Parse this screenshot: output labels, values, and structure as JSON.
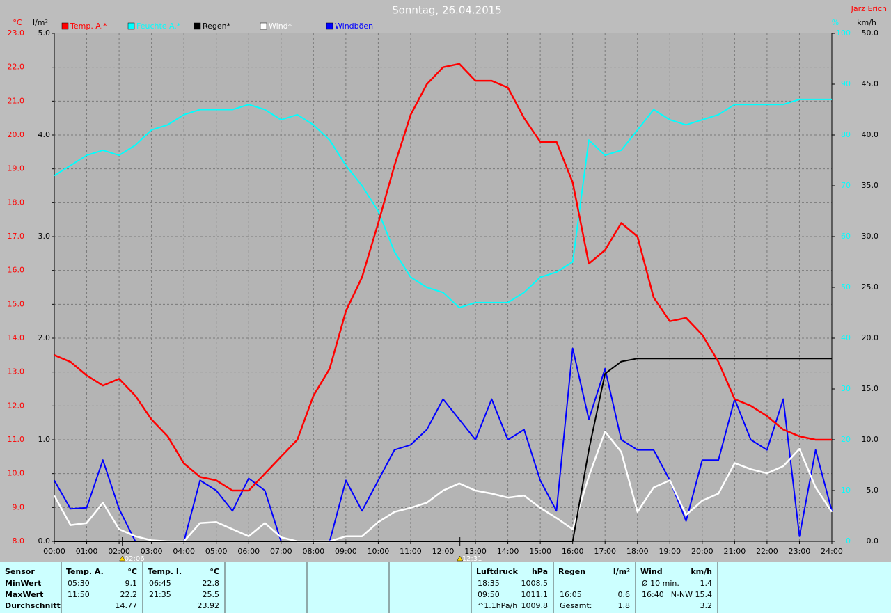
{
  "chart_data": {
    "type": "line",
    "title": "Sonntag, 26.04.2015",
    "author": "Jarz Erich",
    "grid": true,
    "x": [
      0,
      0.5,
      1,
      1.5,
      2,
      2.5,
      3,
      3.5,
      4,
      4.5,
      5,
      5.5,
      6,
      6.5,
      7,
      7.5,
      8,
      8.5,
      9,
      9.5,
      10,
      10.5,
      11,
      11.5,
      12,
      12.5,
      13,
      13.5,
      14,
      14.5,
      15,
      15.5,
      16,
      16.5,
      17,
      17.5,
      18,
      18.5,
      19,
      19.5,
      20,
      20.5,
      21,
      21.5,
      22,
      22.5,
      23,
      23.5,
      24
    ],
    "xlim": [
      0,
      24
    ],
    "xticks": [
      {
        "value": 0,
        "label": "00:00"
      },
      {
        "value": 1,
        "label": "01:00"
      },
      {
        "value": 2,
        "label": "02:00"
      },
      {
        "value": 3,
        "label": "03:00"
      },
      {
        "value": 4,
        "label": "04:00"
      },
      {
        "value": 5,
        "label": "05:00"
      },
      {
        "value": 6,
        "label": "06:00"
      },
      {
        "value": 7,
        "label": "07:00"
      },
      {
        "value": 8,
        "label": "08:00"
      },
      {
        "value": 9,
        "label": "09:00"
      },
      {
        "value": 10,
        "label": "10:00"
      },
      {
        "value": 11,
        "label": "11:00"
      },
      {
        "value": 12,
        "label": "12:00"
      },
      {
        "value": 13,
        "label": "13:00"
      },
      {
        "value": 14,
        "label": "14:00"
      },
      {
        "value": 15,
        "label": "15:00"
      },
      {
        "value": 16,
        "label": "16:00"
      },
      {
        "value": 17,
        "label": "17:00"
      },
      {
        "value": 18,
        "label": "18:00"
      },
      {
        "value": 19,
        "label": "19:00"
      },
      {
        "value": 20,
        "label": "20:00"
      },
      {
        "value": 21,
        "label": "21:00"
      },
      {
        "value": 22,
        "label": "22:00"
      },
      {
        "value": 23,
        "label": "23:00"
      },
      {
        "value": 24,
        "label": "24:00"
      }
    ],
    "y_axes": {
      "temp": {
        "unit": "°C",
        "color": "#ff0000",
        "side": "left",
        "lim": [
          8,
          23
        ],
        "ticks": [
          {
            "value": 8,
            "label": "8.0"
          },
          {
            "value": 9,
            "label": "9.0"
          },
          {
            "value": 10,
            "label": "10.0"
          },
          {
            "value": 11,
            "label": "11.0"
          },
          {
            "value": 12,
            "label": "12.0"
          },
          {
            "value": 13,
            "label": "13.0"
          },
          {
            "value": 14,
            "label": "14.0"
          },
          {
            "value": 15,
            "label": "15.0"
          },
          {
            "value": 16,
            "label": "16.0"
          },
          {
            "value": 17,
            "label": "17.0"
          },
          {
            "value": 18,
            "label": "18.0"
          },
          {
            "value": 19,
            "label": "19.0"
          },
          {
            "value": 20,
            "label": "20.0"
          },
          {
            "value": 21,
            "label": "21.0"
          },
          {
            "value": 22,
            "label": "22.0"
          },
          {
            "value": 23,
            "label": "23.0"
          }
        ]
      },
      "rain": {
        "unit": "l/m²",
        "color": "#000000",
        "side": "left",
        "lim": [
          0,
          5
        ],
        "ticks": [
          {
            "value": 0,
            "label": "0.0"
          },
          {
            "value": 1,
            "label": "1.0"
          },
          {
            "value": 2,
            "label": "2.0"
          },
          {
            "value": 3,
            "label": "3.0"
          },
          {
            "value": 4,
            "label": "4.0"
          },
          {
            "value": 5,
            "label": "5.0"
          }
        ]
      },
      "hum": {
        "unit": "%",
        "color": "#00ffff",
        "side": "right",
        "lim": [
          0,
          100
        ],
        "ticks": [
          0,
          10,
          20,
          30,
          40,
          50,
          60,
          70,
          80,
          90,
          100
        ]
      },
      "wind": {
        "unit": "km/h",
        "color": "#000000",
        "side": "right",
        "lim": [
          0,
          50
        ],
        "ticks": [
          {
            "value": 0,
            "label": "0.0"
          },
          {
            "value": 5,
            "label": "5.0"
          },
          {
            "value": 10,
            "label": "10.0"
          },
          {
            "value": 15,
            "label": "15.0"
          },
          {
            "value": 20,
            "label": "20.0"
          },
          {
            "value": 25,
            "label": "25.0"
          },
          {
            "value": 30,
            "label": "30.0"
          },
          {
            "value": 35,
            "label": "35.0"
          },
          {
            "value": 40,
            "label": "40.0"
          },
          {
            "value": 45,
            "label": "45.0"
          },
          {
            "value": 50,
            "label": "50.0"
          }
        ]
      }
    },
    "series": [
      {
        "name": "Windböen",
        "color": "#0000ff",
        "axis": "wind",
        "values": [
          6.0,
          3.2,
          3.3,
          8.0,
          3.2,
          0,
          0,
          0,
          0,
          6.0,
          5.0,
          3.0,
          6.2,
          5.0,
          0,
          0,
          0,
          0,
          6.0,
          3.0,
          6.0,
          9.0,
          9.5,
          11.0,
          14.0,
          12.0,
          10.0,
          14.0,
          10.0,
          11.0,
          6.0,
          3.0,
          19.0,
          12.0,
          17.0,
          10.0,
          9.0,
          9.0,
          6.0,
          2.0,
          8.0,
          8.0,
          14.0,
          10.0,
          9.0,
          14.0,
          0.5,
          9.0,
          3.0
        ]
      },
      {
        "name": "Wind*",
        "color": "#ffffff",
        "axis": "wind",
        "values": [
          4.5,
          1.6,
          1.8,
          3.8,
          1.2,
          0.5,
          0.1,
          0,
          0,
          1.8,
          1.9,
          1.2,
          0.5,
          1.8,
          0.4,
          0,
          0,
          0,
          0.5,
          0.5,
          1.9,
          2.9,
          3.3,
          3.8,
          5.0,
          5.7,
          5.0,
          4.7,
          4.3,
          4.5,
          3.3,
          2.3,
          1.2,
          6.4,
          10.8,
          8.8,
          2.9,
          5.3,
          6.0,
          2.6,
          4.0,
          4.7,
          7.7,
          7.1,
          6.7,
          7.4,
          9.1,
          5.3,
          2.9
        ]
      },
      {
        "name": "Regen*",
        "color": "#000000",
        "axis": "rain",
        "values": [
          0,
          0,
          0,
          0,
          0,
          0,
          0,
          0,
          0,
          0,
          0,
          0,
          0,
          0,
          0,
          0,
          0,
          0,
          0,
          0,
          0,
          0,
          0,
          0,
          0,
          0,
          0,
          0,
          0,
          0,
          0,
          0,
          0,
          0.9,
          1.65,
          1.77,
          1.8,
          1.8,
          1.8,
          1.8,
          1.8,
          1.8,
          1.8,
          1.8,
          1.8,
          1.8,
          1.8,
          1.8,
          1.8
        ]
      },
      {
        "name": "Feuchte A.*",
        "color": "#00ffff",
        "axis": "hum",
        "values": [
          72,
          74,
          76,
          77,
          76,
          78,
          81,
          82,
          84,
          85,
          85,
          85,
          86,
          85,
          83,
          84,
          82,
          79,
          74,
          70,
          65,
          57,
          52,
          50,
          49,
          46,
          47,
          47,
          47,
          49,
          52,
          53,
          55,
          79,
          76,
          77,
          81,
          85,
          83,
          82,
          83,
          84,
          86,
          86,
          86,
          86,
          87,
          87,
          87
        ]
      },
      {
        "name": "Temp. A.*",
        "color": "#ff0000",
        "axis": "temp",
        "values": [
          13.5,
          13.3,
          12.9,
          12.6,
          12.8,
          12.3,
          11.6,
          11.1,
          10.3,
          9.9,
          9.8,
          9.5,
          9.5,
          10.0,
          10.5,
          11.0,
          12.3,
          13.1,
          14.8,
          15.8,
          17.4,
          19.1,
          20.6,
          21.5,
          22.0,
          22.1,
          21.6,
          21.6,
          21.4,
          20.5,
          19.8,
          19.8,
          18.6,
          16.2,
          16.6,
          17.4,
          17.0,
          15.2,
          14.5,
          14.6,
          14.1,
          13.3,
          12.2,
          12.0,
          11.7,
          11.3,
          11.1,
          11.0,
          11.0
        ]
      }
    ],
    "legend_order": [
      4,
      3,
      2,
      1,
      0
    ],
    "annotations": [
      {
        "x": 2.1,
        "label": "02:06"
      },
      {
        "x": 12.52,
        "label": "12:31"
      }
    ]
  },
  "stats": {
    "row_labels": [
      "Sensor",
      "MinWert",
      "MaxWert",
      "Durchschnitt"
    ],
    "panels": [
      {
        "title": "Temp. A.",
        "unit": "°C",
        "rows": [
          {
            "time": "05:30",
            "value": "9.1"
          },
          {
            "time": "11:50",
            "value": "22.2"
          },
          {
            "value": "14.77"
          }
        ]
      },
      {
        "title": "Temp. I.",
        "unit": "°C",
        "rows": [
          {
            "time": "06:45",
            "value": "22.8"
          },
          {
            "time": "21:35",
            "value": "25.5"
          },
          {
            "value": "23.92"
          }
        ]
      },
      null,
      null,
      null,
      {
        "title": "Luftdruck",
        "unit": "hPa",
        "rows": [
          {
            "time": "18:35",
            "value": "1008.5"
          },
          {
            "time": "09:50",
            "value": "1011.1"
          },
          {
            "time": "^1.1hPa/h",
            "value": "1009.8"
          }
        ]
      },
      {
        "title": "Regen",
        "unit": "l/m²",
        "rows": [
          null,
          {
            "time": "16:05",
            "value": "0.6"
          },
          {
            "time": "Gesamt:",
            "value": "1.8"
          }
        ]
      },
      {
        "title": "Wind",
        "unit": "km/h",
        "rows": [
          {
            "time": "Ø 10 min.",
            "value": "1.4"
          },
          {
            "time": "16:40",
            "value": "N-NW 15.4"
          },
          {
            "value": "3.2"
          }
        ]
      }
    ]
  }
}
